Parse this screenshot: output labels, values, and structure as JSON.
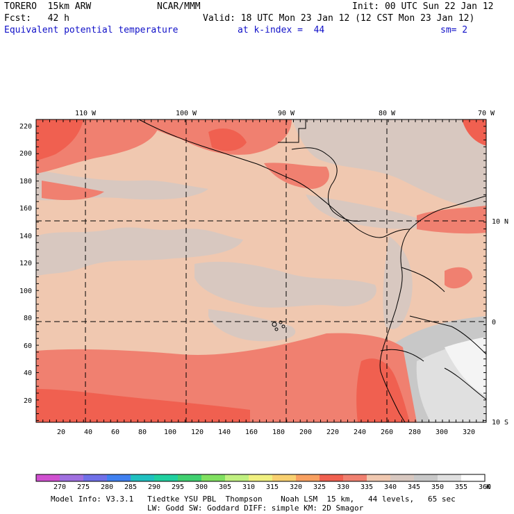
{
  "header": {
    "model": "TORERO  15km ARW",
    "org": "NCAR/MMM",
    "init": "Init: 00 UTC Sun 22 Jan 12",
    "fcst": "Fcst:   42 h",
    "valid": "Valid: 18 UTC Mon 23 Jan 12 (12 CST Mon 23 Jan 12)",
    "field": "Equivalent potential temperature",
    "level": "at k-index =  44",
    "smooth": "sm= 2"
  },
  "map": {
    "top_lon_labels": [
      "110 W",
      "100 W",
      "90 W",
      "80 W",
      "70 W"
    ],
    "right_lat_labels": [
      "10 N",
      "0",
      "10 S"
    ],
    "y_ticks": [
      "220",
      "200",
      "180",
      "160",
      "140",
      "120",
      "100",
      "80",
      "60",
      "40",
      "20"
    ],
    "x_ticks": [
      "20",
      "40",
      "60",
      "80",
      "100",
      "120",
      "140",
      "160",
      "180",
      "200",
      "220",
      "240",
      "260",
      "280",
      "300",
      "320"
    ]
  },
  "colorbar": {
    "labels": [
      "270",
      "275",
      "280",
      "285",
      "290",
      "295",
      "300",
      "305",
      "310",
      "315",
      "320",
      "325",
      "330",
      "335",
      "340",
      "345",
      "350",
      "355",
      "360"
    ],
    "unit": "K",
    "colors": [
      "#d050d0",
      "#a070e0",
      "#7070e8",
      "#4080f0",
      "#20c0c0",
      "#20d0a0",
      "#40d070",
      "#80e060",
      "#c0f080",
      "#f0f080",
      "#f8d070",
      "#f8a060",
      "#f06050",
      "#f08070",
      "#f0c8b0",
      "#d8c8c0",
      "#c8c8c8",
      "#e0e0e0",
      "#ffffff"
    ]
  },
  "footer": {
    "line1": "Model Info: V3.3.1   Tiedtke YSU PBL  Thompson    Noah LSM  15 km,   44 levels,   65 sec",
    "line2": "LW: Godd SW: Goddard DIFF: simple KM: 2D Smagor"
  }
}
